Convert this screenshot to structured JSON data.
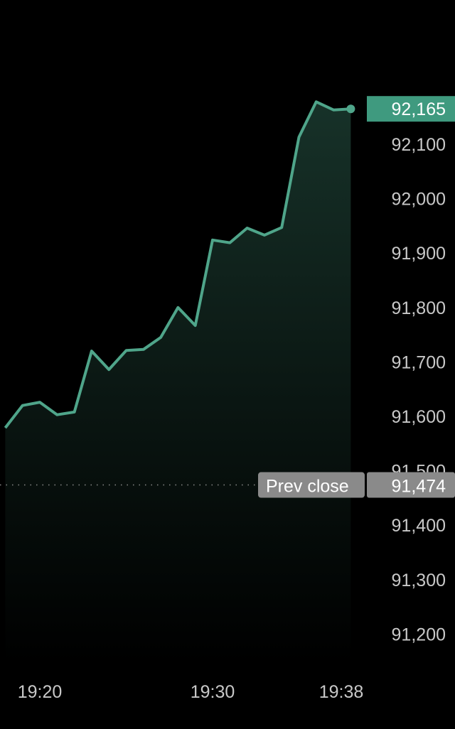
{
  "chart_data": {
    "type": "area",
    "title": "",
    "xlabel": "",
    "ylabel": "",
    "x": [
      "19:18",
      "19:19",
      "19:20",
      "19:21",
      "19:22",
      "19:23",
      "19:24",
      "19:25",
      "19:26",
      "19:27",
      "19:28",
      "19:29",
      "19:30",
      "19:31",
      "19:32",
      "19:33",
      "19:34",
      "19:35",
      "19:36",
      "19:37",
      "19:38"
    ],
    "values": [
      91579,
      91620,
      91626,
      91603,
      91608,
      91720,
      91686,
      91721,
      91723,
      91745,
      91800,
      91767,
      91924,
      91919,
      91946,
      91933,
      91947,
      92113,
      92178,
      92163,
      92165
    ],
    "y_ticks": [
      "92,100",
      "92,000",
      "91,900",
      "91,800",
      "91,700",
      "91,600",
      "91,500",
      "91,400",
      "91,300",
      "91,200"
    ],
    "y_tick_values": [
      92100,
      92000,
      91900,
      91800,
      91700,
      91600,
      91500,
      91400,
      91300,
      91200
    ],
    "x_ticks": [
      "19:20",
      "19:30",
      "19:38"
    ],
    "grid": false,
    "last_price": {
      "label": "92,165",
      "value": 92165
    },
    "prev_close": {
      "label": "Prev close",
      "value_label": "91,474",
      "value": 91474
    },
    "colors": {
      "line": "#4fa58a",
      "fill_top": "#173229",
      "last_badge": "#3f9a7f",
      "prev_close_badge": "#8a8a8a",
      "background": "#000000"
    }
  }
}
